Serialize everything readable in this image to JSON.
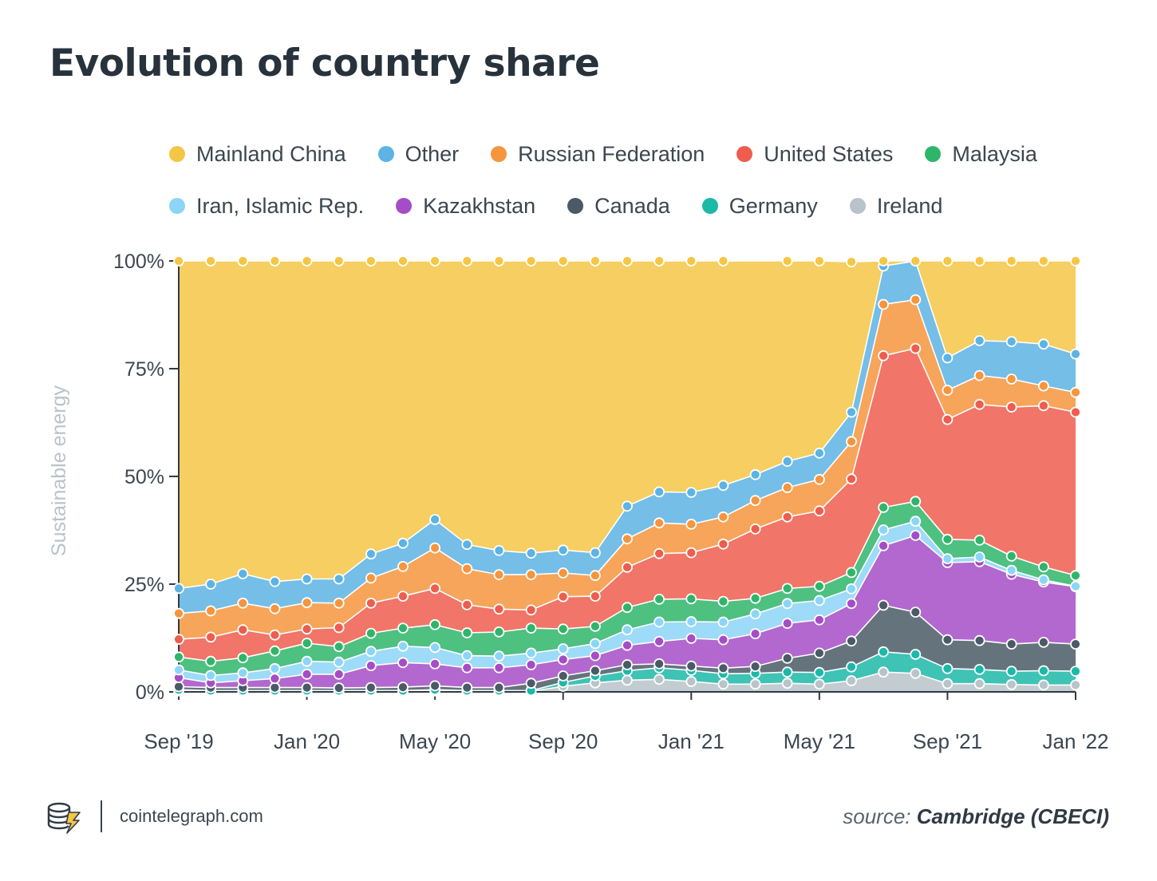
{
  "page": {
    "title": "Evolution of country share",
    "site": "cointelegraph.com",
    "source_prefix": "source:",
    "source_name": "Cambridge (CBECI)"
  },
  "chart_data": {
    "type": "area",
    "stacked": true,
    "title": "Evolution of country share",
    "ylabel": "Sustainable energy",
    "xlabel": "",
    "ylim": [
      0,
      100
    ],
    "y_ticks": [
      "0%",
      "25%",
      "50%",
      "75%",
      "100%"
    ],
    "x_tick_labels": [
      "Sep '19",
      "Jan '20",
      "May '20",
      "Sep '20",
      "Jan '21",
      "May '21",
      "Sep '21",
      "Jan '22"
    ],
    "legend_position": "top",
    "x": [
      "2019-09",
      "2019-10",
      "2019-11",
      "2019-12",
      "2020-01",
      "2020-02",
      "2020-03",
      "2020-04",
      "2020-05",
      "2020-06",
      "2020-07",
      "2020-08",
      "2020-09",
      "2020-10",
      "2020-11",
      "2020-12",
      "2021-01",
      "2021-02",
      "2021-03",
      "2021-04",
      "2021-05",
      "2021-06",
      "2021-07",
      "2021-08",
      "2021-09",
      "2021-10",
      "2021-11",
      "2021-12",
      "2022-01"
    ],
    "series": [
      {
        "name": "Ireland",
        "color": "#b9c3c9",
        "values": [
          0.2,
          0.1,
          0.1,
          0.1,
          0.1,
          0.1,
          0.1,
          0.1,
          0.2,
          0.1,
          0.1,
          0.1,
          1.3,
          2.1,
          2.7,
          2.9,
          2.4,
          1.8,
          1.8,
          2.0,
          1.8,
          2.6,
          4.6,
          4.3,
          1.9,
          1.9,
          1.7,
          1.6,
          1.6
        ]
      },
      {
        "name": "Germany",
        "color": "#1cb8a8",
        "values": [
          0.3,
          0.2,
          0.2,
          0.2,
          0.2,
          0.2,
          0.2,
          0.2,
          0.3,
          0.2,
          0.2,
          0.2,
          0.9,
          1.6,
          2.2,
          2.7,
          2.6,
          2.4,
          2.5,
          2.6,
          2.7,
          3.2,
          4.7,
          4.4,
          3.5,
          3.3,
          3.1,
          3.3,
          3.2
        ]
      },
      {
        "name": "Canada",
        "color": "#4a5a66",
        "values": [
          0.7,
          0.7,
          0.7,
          0.7,
          0.7,
          0.6,
          0.7,
          0.8,
          0.9,
          0.7,
          0.7,
          1.7,
          1.5,
          1.2,
          1.4,
          0.9,
          1.0,
          1.3,
          1.6,
          3.2,
          4.5,
          6.0,
          10.8,
          9.8,
          6.7,
          6.7,
          6.3,
          6.6,
          6.3
        ]
      },
      {
        "name": "Kazakhstan",
        "color": "#a54dc6",
        "values": [
          2.1,
          1.1,
          1.6,
          2.1,
          3.1,
          3.2,
          5.1,
          5.7,
          5.1,
          4.6,
          4.6,
          4.3,
          3.8,
          3.5,
          4.5,
          5.2,
          6.4,
          6.6,
          7.6,
          8.1,
          7.7,
          8.7,
          13.8,
          17.8,
          17.9,
          18.3,
          16.2,
          14.0,
          13.3
        ]
      },
      {
        "name": "Iran, Islamic Rep.",
        "color": "#8cd5f7",
        "values": [
          1.8,
          1.7,
          1.8,
          2.3,
          3.0,
          2.8,
          3.3,
          3.8,
          3.8,
          2.8,
          2.7,
          2.7,
          2.5,
          2.8,
          3.6,
          4.5,
          3.9,
          4.1,
          4.6,
          4.6,
          4.5,
          3.4,
          3.7,
          3.3,
          0.9,
          1.1,
          0.9,
          0.5,
          0.1
        ]
      },
      {
        "name": "Malaysia",
        "color": "#2fb56a",
        "values": [
          3.0,
          3.3,
          3.5,
          4.1,
          4.2,
          3.6,
          4.2,
          4.2,
          5.3,
          5.3,
          5.6,
          5.8,
          4.6,
          4.0,
          5.2,
          5.3,
          5.3,
          4.8,
          3.6,
          3.5,
          3.3,
          3.8,
          5.2,
          4.6,
          4.5,
          3.9,
          3.3,
          3.0,
          2.5
        ]
      },
      {
        "name": "United States",
        "color": "#ee5d4d",
        "values": [
          4.1,
          5.6,
          6.5,
          3.7,
          3.3,
          4.4,
          7.0,
          7.4,
          8.4,
          6.5,
          5.3,
          4.2,
          7.5,
          7.0,
          9.3,
          10.6,
          10.7,
          13.3,
          16.1,
          16.6,
          17.5,
          21.7,
          35.2,
          35.5,
          27.8,
          31.5,
          34.6,
          37.4,
          37.9
        ]
      },
      {
        "name": "Russian Federation",
        "color": "#f6953d",
        "values": [
          6.0,
          6.1,
          6.2,
          6.1,
          6.1,
          5.7,
          5.8,
          6.9,
          9.4,
          8.4,
          8.0,
          8.2,
          5.5,
          4.8,
          6.6,
          7.1,
          6.6,
          6.3,
          6.6,
          6.8,
          7.3,
          8.7,
          11.9,
          11.3,
          6.8,
          6.7,
          6.5,
          4.6,
          4.6
        ]
      },
      {
        "name": "Other",
        "color": "#5cb3e4",
        "values": [
          5.8,
          6.2,
          6.8,
          6.3,
          5.5,
          5.6,
          5.6,
          5.4,
          6.6,
          5.6,
          5.6,
          5.0,
          5.3,
          5.3,
          7.6,
          7.2,
          7.4,
          7.3,
          6.0,
          6.1,
          6.1,
          6.8,
          8.9,
          9.0,
          7.5,
          8.1,
          8.7,
          9.7,
          8.9
        ]
      },
      {
        "name": "Mainland China",
        "color": "#f4c645",
        "values": [
          76.0,
          75.0,
          72.6,
          74.4,
          73.8,
          73.8,
          68.0,
          65.5,
          60.0,
          65.8,
          67.2,
          67.8,
          67.1,
          67.7,
          56.9,
          53.6,
          53.7,
          52.1,
          51.6,
          46.5,
          44.6,
          34.9,
          1.2,
          0.0,
          22.5,
          18.5,
          18.7,
          19.3,
          21.6
        ]
      }
    ],
    "legend_order": [
      "Mainland China",
      "Other",
      "Russian Federation",
      "United States",
      "Malaysia",
      "Iran, Islamic Rep.",
      "Kazakhstan",
      "Canada",
      "Germany",
      "Ireland"
    ]
  }
}
